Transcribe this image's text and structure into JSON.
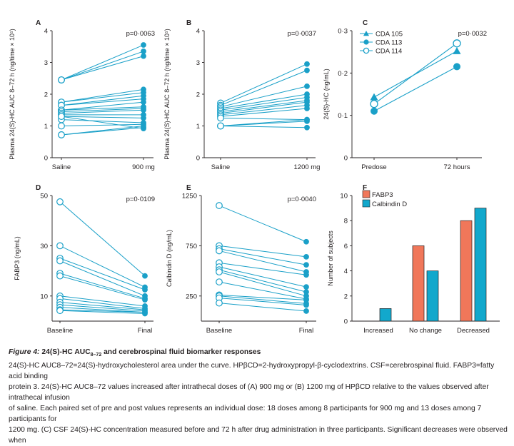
{
  "figure_label": "Figure 4:",
  "figure_title": "24(S)-HC AUC",
  "figure_title_sub": "8–72",
  "figure_title_rest": " and cerebrospinal fluid biomarker responses",
  "caption_lines": [
    "24(S)-HC AUC8–72=24(S)-hydroxycholesterol area under the curve. HPβCD=2-hydroxypropyl-β-cyclodextrins. CSF=cerebrospinal fluid. FABP3=fatty acid binding",
    "protein 3. 24(S)-HC AUC8–72 values increased after intrathecal doses of (A) 900 mg or (B) 1200 mg of HPβCD relative to the values observed after intrathecal infusion",
    "of saline. Each paired set of pre and post values represents an individual dose: 18 doses among 8 participants for 900 mg and 13 doses among 7 participants for",
    "1200 mg. (C) CSF 24(S)-HC concentration measured before and 72 h after drug administration in three participants. Significant decreases were observed when"
  ],
  "colors": {
    "line": "#1aa0c8",
    "fabp3": "#f0775a",
    "calbindin": "#12a8cc",
    "axis": "#231f20"
  },
  "chart_data": [
    {
      "panel": "A",
      "type": "line",
      "ylabel": "Plasma 24(S)-HC AUC 8–72 h (ng/time × 10⁵)",
      "categories": [
        "Saline",
        "900 mg"
      ],
      "ylim": [
        0,
        4
      ],
      "yticks": [
        "0",
        "1",
        "2",
        "3",
        "4"
      ],
      "pvalue": "p=0·0063",
      "pairs": [
        [
          2.45,
          3.55
        ],
        [
          2.45,
          3.35
        ],
        [
          2.45,
          3.2
        ],
        [
          1.75,
          2.15
        ],
        [
          1.75,
          2.05
        ],
        [
          1.65,
          1.95
        ],
        [
          1.65,
          1.85
        ],
        [
          1.5,
          1.75
        ],
        [
          1.5,
          1.6
        ],
        [
          1.45,
          1.55
        ],
        [
          1.4,
          1.5
        ],
        [
          1.35,
          1.35
        ],
        [
          1.3,
          1.25
        ],
        [
          1.2,
          1.1
        ],
        [
          1.0,
          1.05
        ],
        [
          0.72,
          1.0
        ],
        [
          0.72,
          0.95
        ],
        [
          1.3,
          0.92
        ]
      ]
    },
    {
      "panel": "B",
      "type": "line",
      "ylabel": "Plasma 24(S)-HC AUC 8–72 h (ng/time × 10⁵)",
      "categories": [
        "Saline",
        "1200 mg"
      ],
      "ylim": [
        0,
        4
      ],
      "yticks": [
        "0",
        "1",
        "2",
        "3",
        "4"
      ],
      "pvalue": "p=0·0037",
      "pairs": [
        [
          1.72,
          2.95
        ],
        [
          1.65,
          2.75
        ],
        [
          1.6,
          2.25
        ],
        [
          1.55,
          2.0
        ],
        [
          1.5,
          1.9
        ],
        [
          1.45,
          1.8
        ],
        [
          1.4,
          1.75
        ],
        [
          1.35,
          1.65
        ],
        [
          1.3,
          1.55
        ],
        [
          1.25,
          1.2
        ],
        [
          1.0,
          1.2
        ],
        [
          1.0,
          1.15
        ],
        [
          1.0,
          0.95
        ]
      ]
    },
    {
      "panel": "C",
      "type": "line",
      "ylabel": "24(S)-HC (ng/mL)",
      "categories": [
        "Predose",
        "72 hours"
      ],
      "ylim": [
        0,
        0.3
      ],
      "yticks": [
        "0",
        "0·1",
        "0·2",
        "0·3"
      ],
      "pvalue": "p=0·0032",
      "series": [
        {
          "name": "CDA 105",
          "marker": "triangle",
          "values": [
            0.143,
            0.252
          ]
        },
        {
          "name": "CDA 113",
          "marker": "filled-circle",
          "values": [
            0.11,
            0.215
          ]
        },
        {
          "name": "CDA 114",
          "marker": "open-circle",
          "values": [
            0.127,
            0.27
          ]
        }
      ]
    },
    {
      "panel": "D",
      "type": "line",
      "ylabel": "FABP3 (ng/mL)",
      "categories": [
        "Baseline",
        "Final"
      ],
      "ylim": [
        0,
        50
      ],
      "yticks": [
        "10",
        "30",
        "50"
      ],
      "ytick_values": [
        10,
        30,
        50
      ],
      "pvalue": "p=0·0109",
      "pairs": [
        [
          47.5,
          18
        ],
        [
          30,
          13.5
        ],
        [
          25,
          12.5
        ],
        [
          24,
          10
        ],
        [
          19,
          9
        ],
        [
          18,
          8.5
        ],
        [
          10,
          6
        ],
        [
          9,
          5
        ],
        [
          7.5,
          4.5
        ],
        [
          6.5,
          4
        ],
        [
          5.5,
          3.5
        ],
        [
          4.5,
          3.5
        ],
        [
          4.2,
          3
        ]
      ]
    },
    {
      "panel": "E",
      "type": "line",
      "ylabel": "Calbindin D (ng/mL)",
      "categories": [
        "Baseline",
        "Final"
      ],
      "ylim": [
        0,
        1250
      ],
      "yticks": [
        "250",
        "750",
        "1250"
      ],
      "ytick_values": [
        250,
        750,
        1250
      ],
      "pvalue": "p=0·0040",
      "pairs": [
        [
          1150,
          790
        ],
        [
          750,
          640
        ],
        [
          720,
          560
        ],
        [
          700,
          490
        ],
        [
          580,
          460
        ],
        [
          540,
          340
        ],
        [
          510,
          290
        ],
        [
          490,
          250
        ],
        [
          390,
          220
        ],
        [
          260,
          210
        ],
        [
          250,
          175
        ],
        [
          230,
          160
        ],
        [
          180,
          100
        ]
      ]
    },
    {
      "panel": "F",
      "type": "bar",
      "ylabel": "Number of subjects",
      "categories": [
        "Increased",
        "No change",
        "Decreased"
      ],
      "ylim": [
        0,
        10
      ],
      "yticks": [
        "0",
        "2",
        "4",
        "6",
        "8",
        "10"
      ],
      "series": [
        {
          "name": "FABP3",
          "values": [
            0,
            6,
            8
          ]
        },
        {
          "name": "Calbindin D",
          "values": [
            1,
            4,
            9
          ]
        }
      ]
    }
  ]
}
